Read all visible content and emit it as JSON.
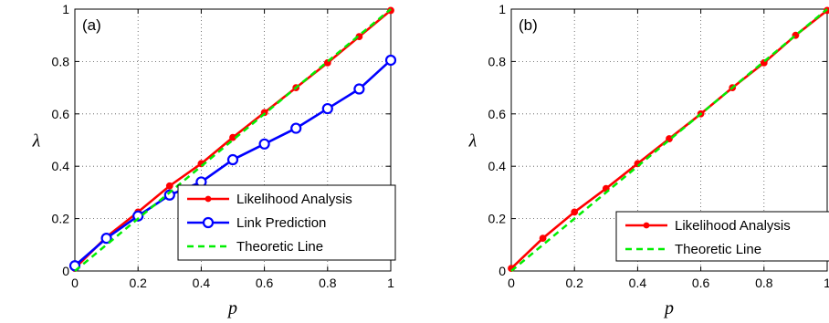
{
  "chart_data": [
    {
      "type": "line",
      "panel_label": "(a)",
      "xlabel": "p",
      "ylabel": "λ",
      "xlim": [
        0,
        1
      ],
      "ylim": [
        0,
        1
      ],
      "xticks": [
        "0",
        "0.2",
        "0.4",
        "0.6",
        "0.8",
        "1"
      ],
      "yticks": [
        "0",
        "0.2",
        "0.4",
        "0.6",
        "0.8",
        "1"
      ],
      "grid": "dotted",
      "legend_position": "bottom-right",
      "series": [
        {
          "name": "Likelihood Analysis",
          "color": "#ff0000",
          "marker": "filled-dot",
          "dash": "solid",
          "x": [
            0,
            0.1,
            0.2,
            0.3,
            0.4,
            0.5,
            0.6,
            0.7,
            0.8,
            0.9,
            1.0
          ],
          "y": [
            0.01,
            0.13,
            0.225,
            0.325,
            0.41,
            0.51,
            0.605,
            0.7,
            0.795,
            0.895,
            0.995
          ]
        },
        {
          "name": "Link Prediction",
          "color": "#0000ff",
          "marker": "open-circle",
          "dash": "solid",
          "x": [
            0,
            0.1,
            0.2,
            0.3,
            0.4,
            0.5,
            0.6,
            0.7,
            0.8,
            0.9,
            1.0
          ],
          "y": [
            0.02,
            0.125,
            0.21,
            0.29,
            0.34,
            0.425,
            0.485,
            0.545,
            0.62,
            0.695,
            0.805
          ]
        },
        {
          "name": "Theoretic Line",
          "color": "#00ee00",
          "marker": "none",
          "dash": "dashed",
          "x": [
            0,
            1
          ],
          "y": [
            0,
            1
          ]
        }
      ]
    },
    {
      "type": "line",
      "panel_label": "(b)",
      "xlabel": "p",
      "ylabel": "λ",
      "xlim": [
        0,
        1
      ],
      "ylim": [
        0,
        1
      ],
      "xticks": [
        "0",
        "0.2",
        "0.4",
        "0.6",
        "0.8",
        "1"
      ],
      "yticks": [
        "0",
        "0.2",
        "0.4",
        "0.6",
        "0.8",
        "1"
      ],
      "grid": "dotted",
      "legend_position": "bottom-right",
      "series": [
        {
          "name": "Likelihood Analysis",
          "color": "#ff0000",
          "marker": "filled-dot",
          "dash": "solid",
          "x": [
            0,
            0.1,
            0.2,
            0.3,
            0.4,
            0.5,
            0.6,
            0.7,
            0.8,
            0.9,
            1.0
          ],
          "y": [
            0.01,
            0.125,
            0.225,
            0.315,
            0.41,
            0.505,
            0.6,
            0.7,
            0.795,
            0.9,
            0.995
          ]
        },
        {
          "name": "Theoretic Line",
          "color": "#00ee00",
          "marker": "none",
          "dash": "dashed",
          "x": [
            0,
            1
          ],
          "y": [
            0,
            1
          ]
        }
      ]
    }
  ]
}
